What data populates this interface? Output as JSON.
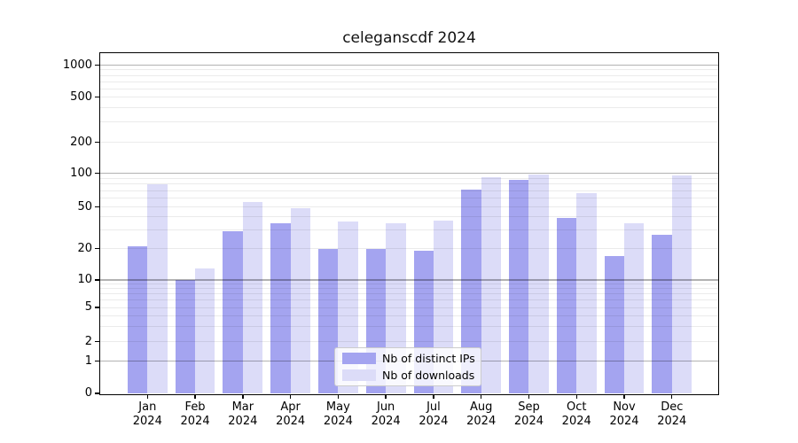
{
  "title": "celeganscdf 2024",
  "chart_data": {
    "type": "bar",
    "title": "celeganscdf 2024",
    "categories": [
      "Jan 2024",
      "Feb 2024",
      "Mar 2024",
      "Apr 2024",
      "May 2024",
      "Jun 2024",
      "Jul 2024",
      "Aug 2024",
      "Sep 2024",
      "Oct 2024",
      "Nov 2024",
      "Dec 2024"
    ],
    "series": [
      {
        "name": "Nb of distinct IPs",
        "color": "#a4a4f0",
        "values": [
          21,
          10,
          29,
          35,
          20,
          20,
          19,
          72,
          88,
          39,
          17,
          27
        ]
      },
      {
        "name": "Nb of downloads",
        "color": "#dcdcf8",
        "values": [
          80,
          13,
          55,
          49,
          36,
          35,
          37,
          92,
          98,
          66,
          35,
          95
        ]
      }
    ],
    "xlabel": "",
    "ylabel": "",
    "yscale": "symlog",
    "yticks": [
      0,
      1,
      2,
      5,
      10,
      20,
      50,
      100,
      200,
      500,
      1000
    ],
    "ylim": [
      0,
      1300
    ],
    "grid": true,
    "legend_position": "lower center"
  },
  "colors": {
    "background": "#ffffff",
    "bar_distinct_ips": "#a4a4f0",
    "bar_downloads": "#dcdcf8",
    "major_gridline": "#b3b3b3",
    "minor_gridline": "#ececec",
    "axis": "#000000",
    "legend_border": "#cccccc"
  }
}
